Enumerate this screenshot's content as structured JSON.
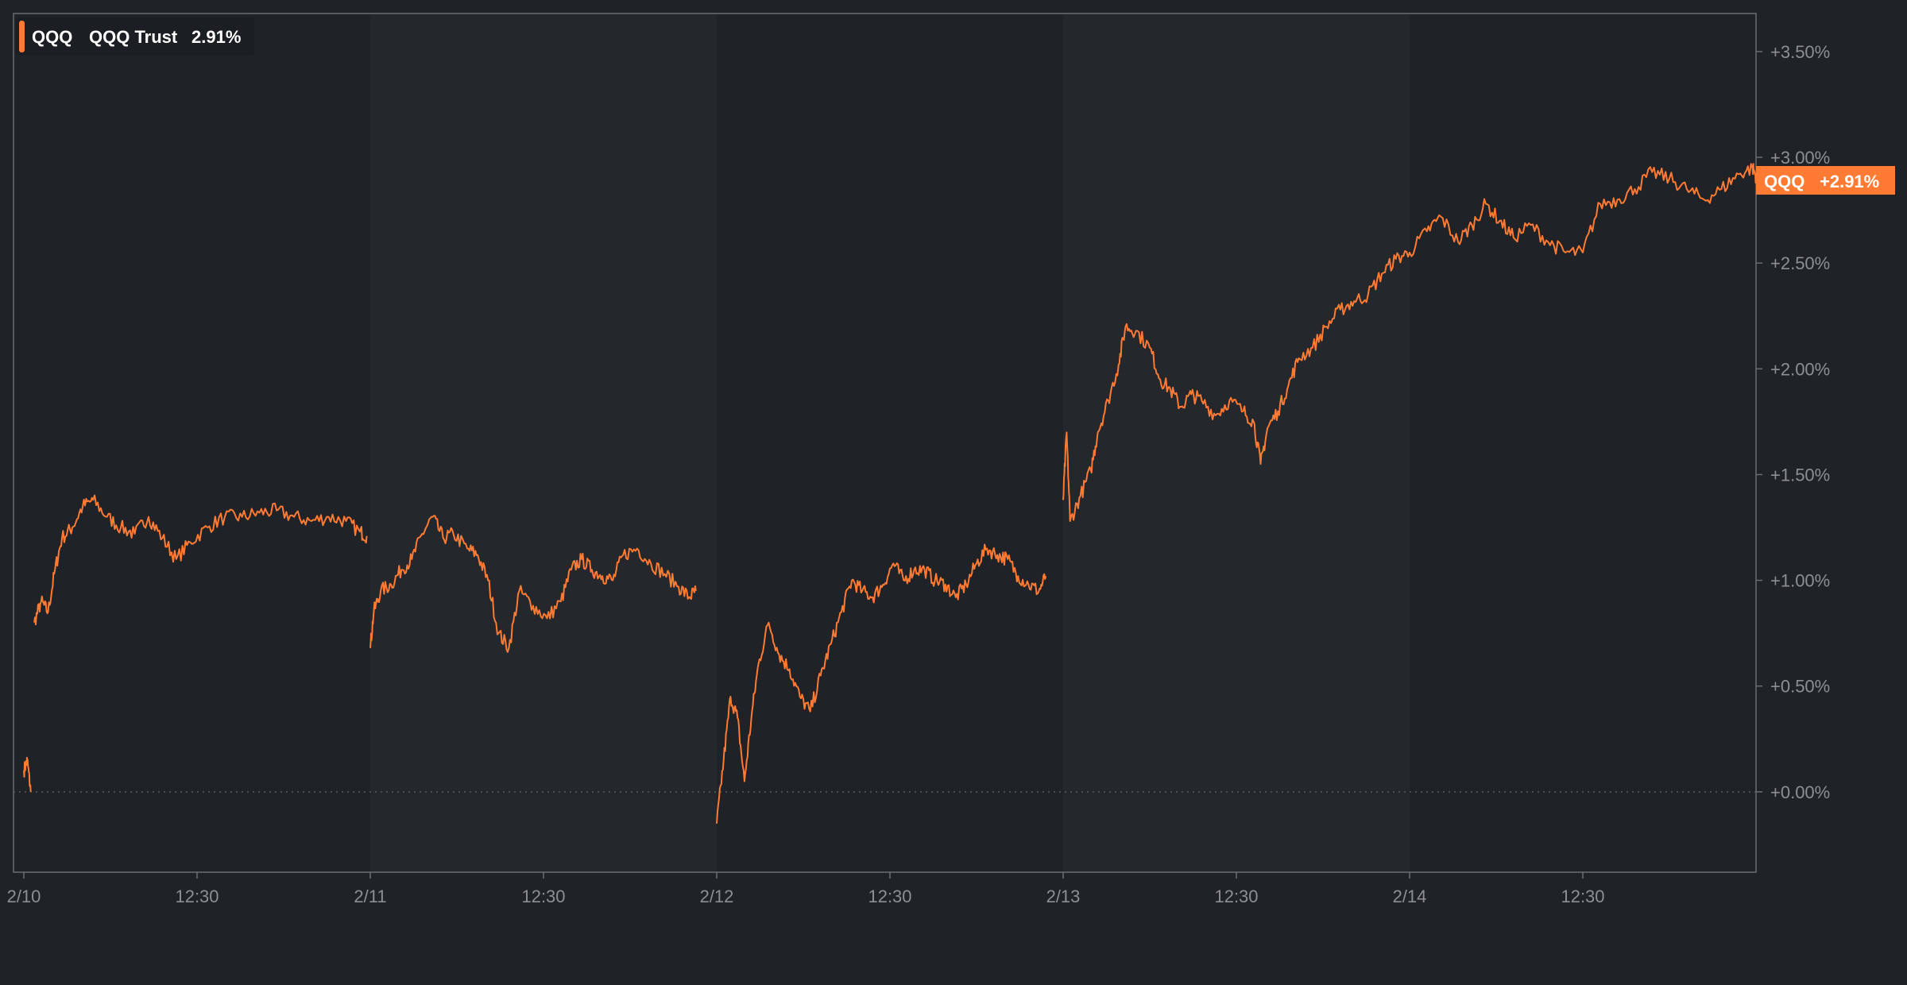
{
  "legend": {
    "symbol": "QQQ",
    "name": "QQQ Trust",
    "change": "2.91%",
    "color": "#ff7a33"
  },
  "badge": {
    "symbol": "QQQ",
    "change": "+2.91%",
    "color": "#ff7a33"
  },
  "colors": {
    "background": "#1f2226",
    "plot_background": "#1f2226",
    "alternate_band": "#24272b",
    "line": "#ff7a33",
    "axis": "#6a6d72",
    "tick_text": "#8c8f94",
    "zero_line": "#5a5d62"
  },
  "chart_data": {
    "type": "line",
    "title": "",
    "xlabel": "",
    "ylabel": "",
    "y_unit": "percent change",
    "ylim": [
      -0.38,
      3.68
    ],
    "y_ticks": [
      0.0,
      0.5,
      1.0,
      1.5,
      2.0,
      2.5,
      3.0,
      3.5
    ],
    "y_tick_labels": [
      "+0.00%",
      "+0.50%",
      "+1.00%",
      "+1.50%",
      "+2.00%",
      "+2.50%",
      "+3.00%",
      "+3.50%"
    ],
    "x_unit": "trading session (5 sessions, Feb 10 – Feb 14)",
    "xlim": [
      0,
      5
    ],
    "x_ticks": [
      0,
      0.5,
      1,
      1.5,
      2,
      2.5,
      3,
      3.5,
      4,
      4.5
    ],
    "x_tick_labels": [
      "2/10",
      "12:30",
      "2/11",
      "12:30",
      "2/12",
      "12:30",
      "2/13",
      "12:30",
      "2/14",
      "12:30"
    ],
    "grid": false,
    "legend_position": "top-left",
    "series": [
      {
        "name": "QQQ",
        "color": "#ff7a33",
        "segments": [
          [
            [
              0.0,
              0.1
            ],
            [
              0.01,
              0.15
            ],
            [
              0.02,
              0.0
            ]
          ],
          [
            [
              0.03,
              0.8
            ],
            [
              0.05,
              0.9
            ],
            [
              0.07,
              0.85
            ],
            [
              0.09,
              1.05
            ],
            [
              0.11,
              1.2
            ],
            [
              0.14,
              1.25
            ],
            [
              0.17,
              1.35
            ],
            [
              0.2,
              1.38
            ],
            [
              0.24,
              1.3
            ],
            [
              0.28,
              1.25
            ],
            [
              0.32,
              1.22
            ],
            [
              0.36,
              1.3
            ],
            [
              0.4,
              1.2
            ],
            [
              0.44,
              1.1
            ],
            [
              0.48,
              1.18
            ],
            [
              0.53,
              1.25
            ],
            [
              0.58,
              1.3
            ],
            [
              0.63,
              1.3
            ],
            [
              0.68,
              1.32
            ],
            [
              0.73,
              1.33
            ],
            [
              0.78,
              1.3
            ],
            [
              0.83,
              1.28
            ],
            [
              0.88,
              1.3
            ],
            [
              0.93,
              1.28
            ],
            [
              0.97,
              1.23
            ],
            [
              0.99,
              1.21
            ]
          ],
          [
            [
              1.0,
              0.68
            ],
            [
              1.01,
              0.85
            ],
            [
              1.03,
              0.95
            ],
            [
              1.06,
              0.98
            ],
            [
              1.09,
              1.05
            ],
            [
              1.12,
              1.1
            ],
            [
              1.15,
              1.22
            ],
            [
              1.18,
              1.3
            ],
            [
              1.21,
              1.2
            ],
            [
              1.24,
              1.22
            ],
            [
              1.28,
              1.15
            ],
            [
              1.31,
              1.12
            ],
            [
              1.34,
              1.0
            ],
            [
              1.37,
              0.75
            ],
            [
              1.4,
              0.68
            ],
            [
              1.43,
              0.95
            ],
            [
              1.47,
              0.88
            ],
            [
              1.51,
              0.82
            ],
            [
              1.55,
              0.9
            ],
            [
              1.58,
              1.05
            ],
            [
              1.61,
              1.1
            ],
            [
              1.64,
              1.05
            ],
            [
              1.67,
              1.02
            ],
            [
              1.7,
              1.0
            ],
            [
              1.73,
              1.12
            ],
            [
              1.77,
              1.15
            ],
            [
              1.81,
              1.08
            ],
            [
              1.85,
              1.03
            ],
            [
              1.89,
              0.97
            ],
            [
              1.92,
              0.92
            ],
            [
              1.94,
              0.95
            ]
          ],
          [
            [
              2.0,
              -0.15
            ],
            [
              2.02,
              0.15
            ],
            [
              2.04,
              0.45
            ],
            [
              2.06,
              0.35
            ],
            [
              2.08,
              0.05
            ],
            [
              2.1,
              0.35
            ],
            [
              2.12,
              0.6
            ],
            [
              2.15,
              0.8
            ],
            [
              2.18,
              0.65
            ],
            [
              2.21,
              0.58
            ],
            [
              2.24,
              0.45
            ],
            [
              2.27,
              0.38
            ],
            [
              2.3,
              0.55
            ],
            [
              2.33,
              0.7
            ],
            [
              2.36,
              0.85
            ],
            [
              2.39,
              1.0
            ],
            [
              2.42,
              0.95
            ],
            [
              2.45,
              0.92
            ],
            [
              2.48,
              0.98
            ],
            [
              2.51,
              1.08
            ],
            [
              2.54,
              1.0
            ],
            [
              2.57,
              1.05
            ],
            [
              2.6,
              1.05
            ],
            [
              2.63,
              1.0
            ],
            [
              2.66,
              0.98
            ],
            [
              2.69,
              0.92
            ],
            [
              2.72,
              0.98
            ],
            [
              2.75,
              1.08
            ],
            [
              2.78,
              1.15
            ],
            [
              2.81,
              1.12
            ],
            [
              2.84,
              1.1
            ],
            [
              2.87,
              1.02
            ],
            [
              2.9,
              0.98
            ],
            [
              2.93,
              0.95
            ],
            [
              2.95,
              1.02
            ]
          ],
          [
            [
              3.0,
              1.38
            ],
            [
              3.01,
              1.7
            ],
            [
              3.02,
              1.28
            ],
            [
              3.05,
              1.4
            ],
            [
              3.08,
              1.52
            ],
            [
              3.1,
              1.7
            ],
            [
              3.13,
              1.85
            ],
            [
              3.16,
              2.02
            ],
            [
              3.18,
              2.2
            ],
            [
              3.21,
              2.18
            ],
            [
              3.25,
              2.1
            ],
            [
              3.28,
              1.95
            ],
            [
              3.31,
              1.9
            ],
            [
              3.34,
              1.82
            ],
            [
              3.37,
              1.88
            ],
            [
              3.4,
              1.85
            ],
            [
              3.44,
              1.78
            ],
            [
              3.48,
              1.85
            ],
            [
              3.52,
              1.8
            ],
            [
              3.55,
              1.75
            ],
            [
              3.57,
              1.55
            ],
            [
              3.59,
              1.72
            ],
            [
              3.62,
              1.8
            ],
            [
              3.65,
              1.92
            ],
            [
              3.68,
              2.05
            ],
            [
              3.72,
              2.1
            ],
            [
              3.76,
              2.2
            ],
            [
              3.8,
              2.28
            ],
            [
              3.84,
              2.32
            ],
            [
              3.88,
              2.35
            ],
            [
              3.92,
              2.45
            ],
            [
              3.96,
              2.52
            ],
            [
              4.0,
              2.55
            ],
            [
              4.05,
              2.65
            ],
            [
              4.09,
              2.72
            ],
            [
              4.14,
              2.6
            ],
            [
              4.18,
              2.68
            ],
            [
              4.22,
              2.78
            ],
            [
              4.26,
              2.7
            ],
            [
              4.3,
              2.62
            ],
            [
              4.35,
              2.68
            ],
            [
              4.4,
              2.6
            ],
            [
              4.45,
              2.55
            ],
            [
              4.5,
              2.55
            ],
            [
              4.55,
              2.78
            ],
            [
              4.6,
              2.8
            ],
            [
              4.65,
              2.85
            ],
            [
              4.7,
              2.93
            ],
            [
              4.75,
              2.9
            ],
            [
              4.8,
              2.85
            ],
            [
              4.85,
              2.8
            ],
            [
              4.9,
              2.85
            ],
            [
              4.95,
              2.92
            ],
            [
              4.99,
              2.95
            ],
            [
              5.0,
              2.91
            ]
          ]
        ]
      }
    ]
  }
}
